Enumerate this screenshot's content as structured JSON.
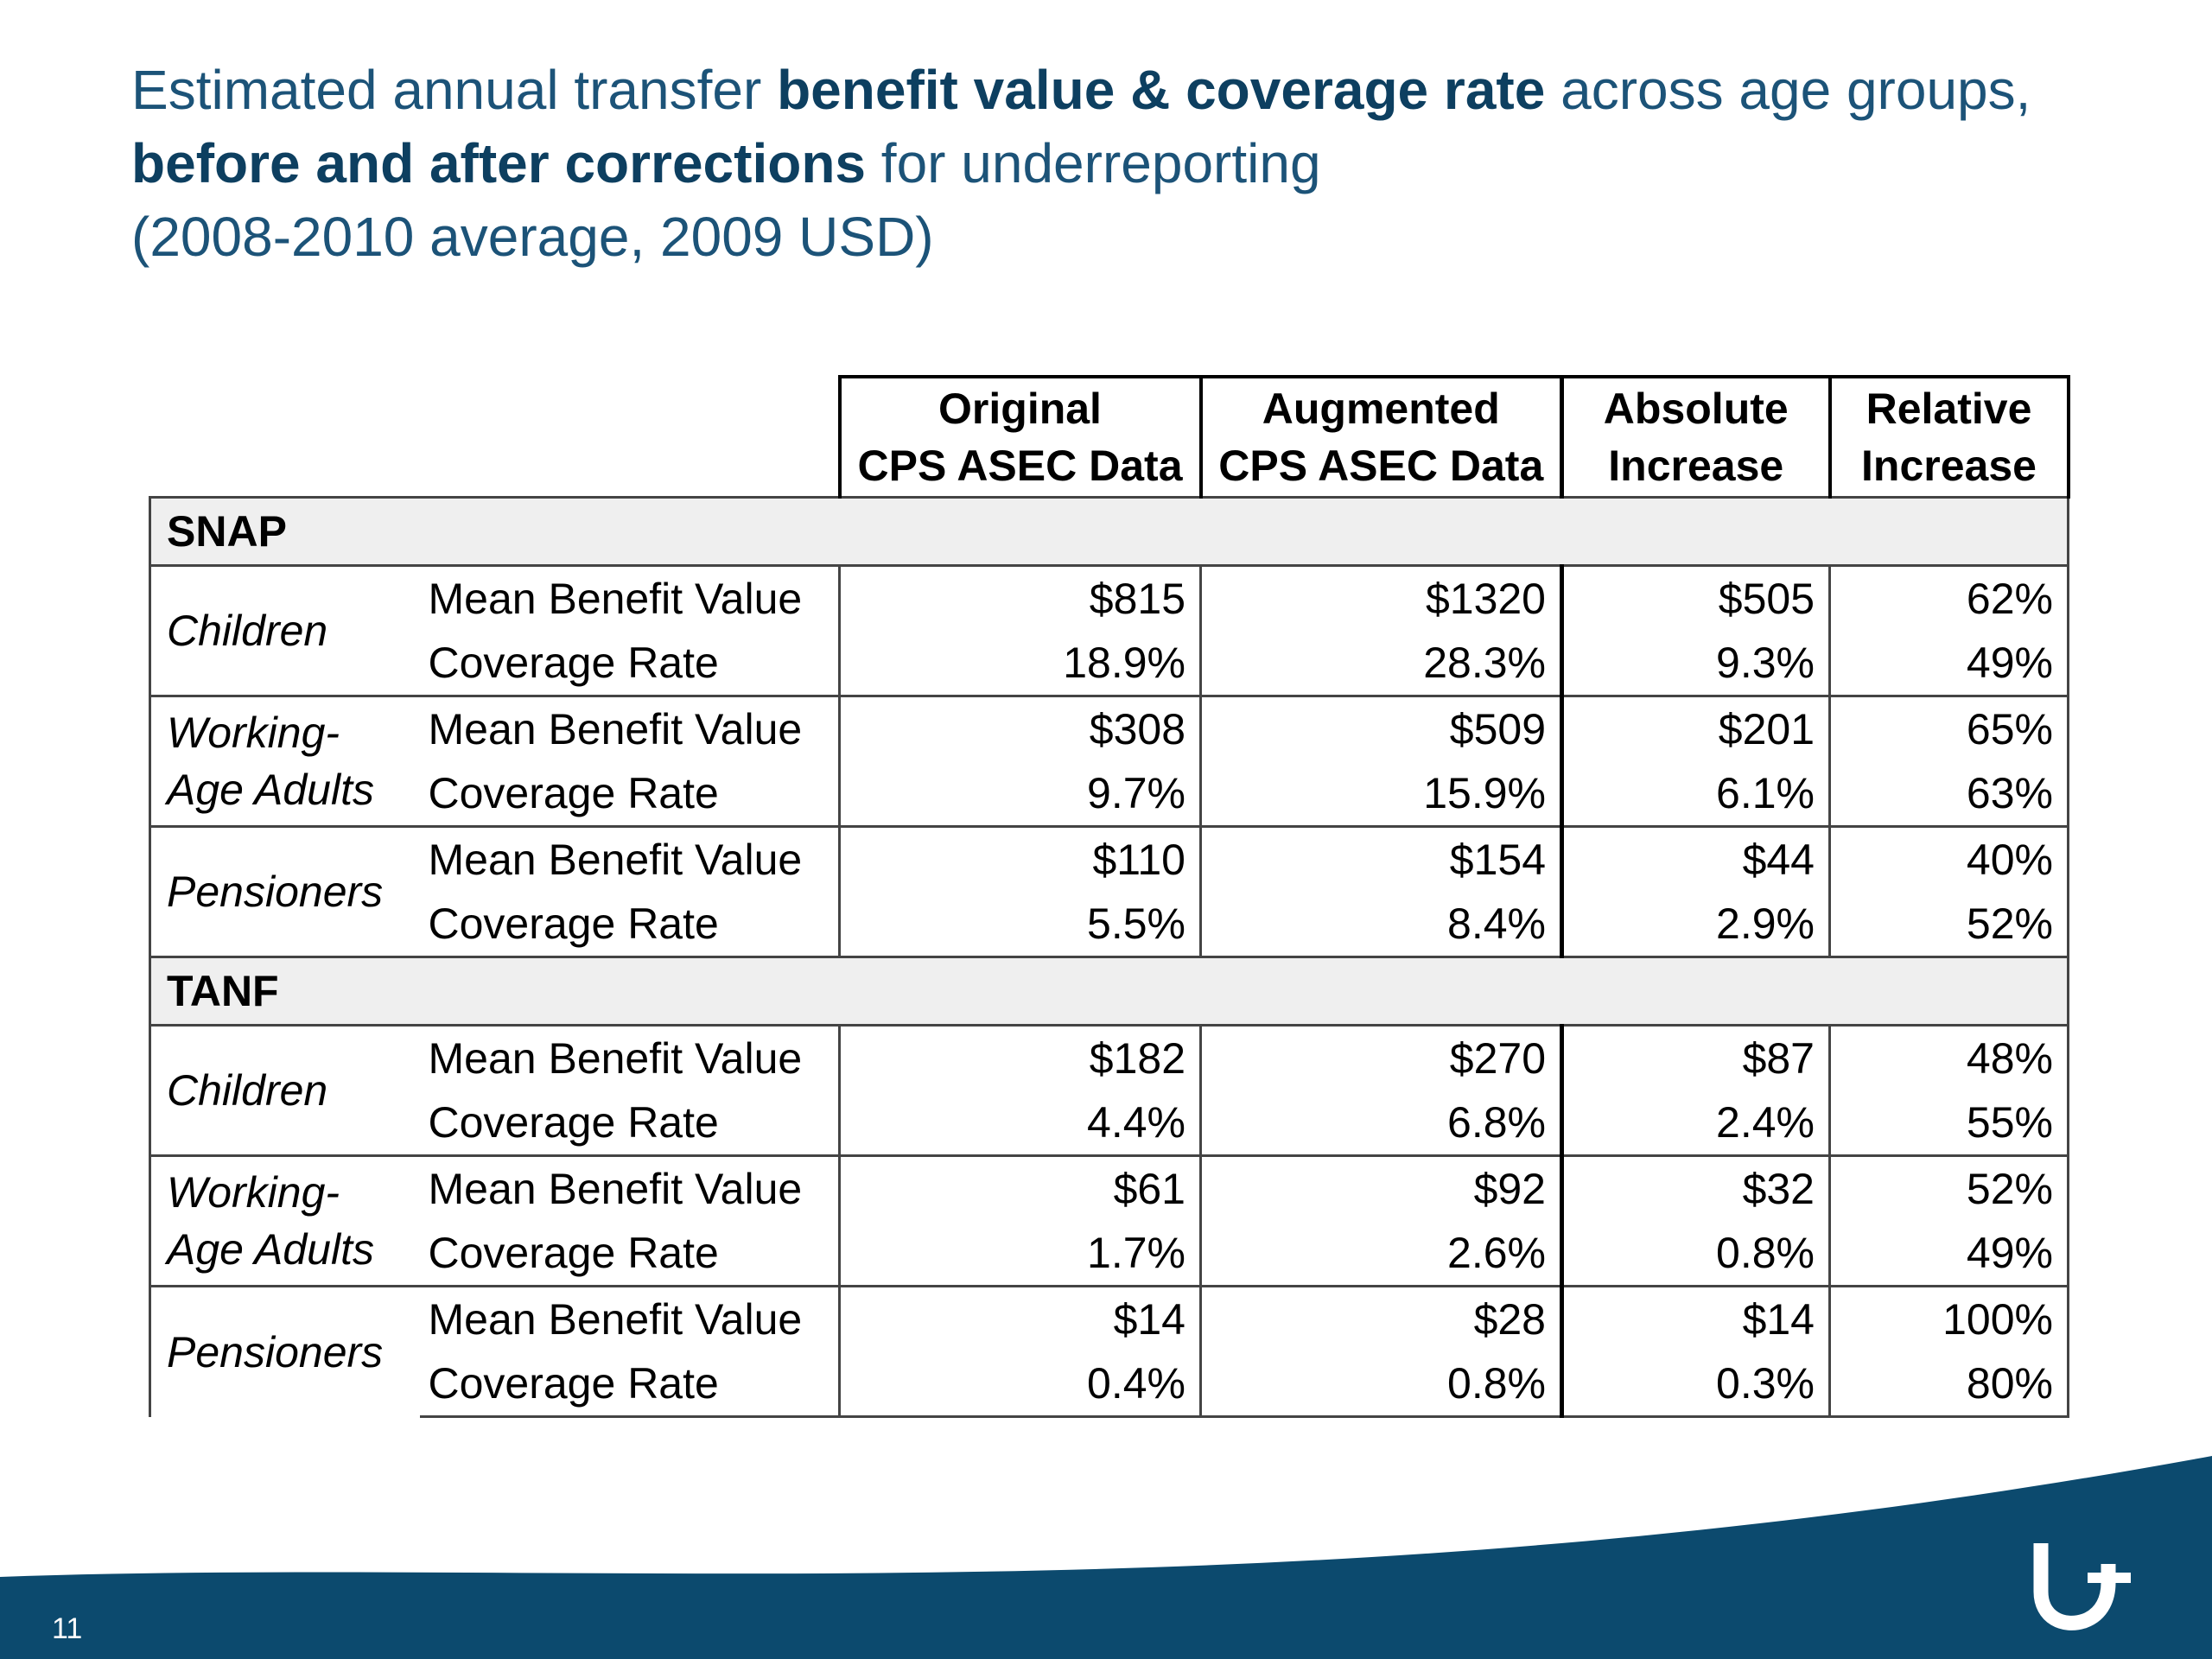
{
  "title": {
    "line1_plain": "Estimated annual transfer ",
    "line1_bold": "benefit value & coverage rate",
    "line1_end": " across age groups,",
    "line2_bold": "before and after corrections",
    "line2_end": " for underreporting",
    "line3": "(2008-2010 average, 2009 USD)"
  },
  "columns": {
    "original": [
      "Original",
      "CPS ASEC Data"
    ],
    "augmented": [
      "Augmented",
      "CPS ASEC Data"
    ],
    "absolute": [
      "Absolute",
      "Increase"
    ],
    "relative": [
      "Relative",
      "Increase"
    ]
  },
  "sections": [
    {
      "name": "SNAP",
      "groups": [
        {
          "age": "Children",
          "rows": [
            {
              "metric": "Mean Benefit Value",
              "original": "$815",
              "augmented": "$1320",
              "absolute": "$505",
              "relative": "62%"
            },
            {
              "metric": "Coverage Rate",
              "original": "18.9%",
              "augmented": "28.3%",
              "absolute": "9.3%",
              "relative": "49%"
            }
          ]
        },
        {
          "age": "Working-Age Adults",
          "age_lines": [
            "Working-",
            "Age Adults"
          ],
          "rows": [
            {
              "metric": "Mean Benefit Value",
              "original": "$308",
              "augmented": "$509",
              "absolute": "$201",
              "relative": "65%"
            },
            {
              "metric": "Coverage Rate",
              "original": "9.7%",
              "augmented": "15.9%",
              "absolute": "6.1%",
              "relative": "63%"
            }
          ]
        },
        {
          "age": "Pensioners",
          "rows": [
            {
              "metric": "Mean Benefit Value",
              "original": "$110",
              "augmented": "$154",
              "absolute": "$44",
              "relative": "40%"
            },
            {
              "metric": "Coverage Rate",
              "original": "5.5%",
              "augmented": "8.4%",
              "absolute": "2.9%",
              "relative": "52%"
            }
          ]
        }
      ]
    },
    {
      "name": "TANF",
      "groups": [
        {
          "age": "Children",
          "rows": [
            {
              "metric": "Mean Benefit Value",
              "original": "$182",
              "augmented": "$270",
              "absolute": "$87",
              "relative": "48%"
            },
            {
              "metric": "Coverage Rate",
              "original": "4.4%",
              "augmented": "6.8%",
              "absolute": "2.4%",
              "relative": "55%"
            }
          ]
        },
        {
          "age": "Working-Age Adults",
          "age_lines": [
            "Working-",
            "Age Adults"
          ],
          "rows": [
            {
              "metric": "Mean Benefit Value",
              "original": "$61",
              "augmented": "$92",
              "absolute": "$32",
              "relative": "52%"
            },
            {
              "metric": "Coverage Rate",
              "original": "1.7%",
              "augmented": "2.6%",
              "absolute": "0.8%",
              "relative": "49%"
            }
          ]
        },
        {
          "age": "Pensioners",
          "rows": [
            {
              "metric": "Mean Benefit Value",
              "original": "$14",
              "augmented": "$28",
              "absolute": "$14",
              "relative": "100%"
            },
            {
              "metric": "Coverage Rate",
              "original": "0.4%",
              "augmented": "0.8%",
              "absolute": "0.3%",
              "relative": "80%"
            }
          ]
        }
      ]
    }
  ],
  "footer": {
    "page_number": "11",
    "logo_icon": "institution-logo-icon",
    "band_color": "#0c4a6e"
  }
}
